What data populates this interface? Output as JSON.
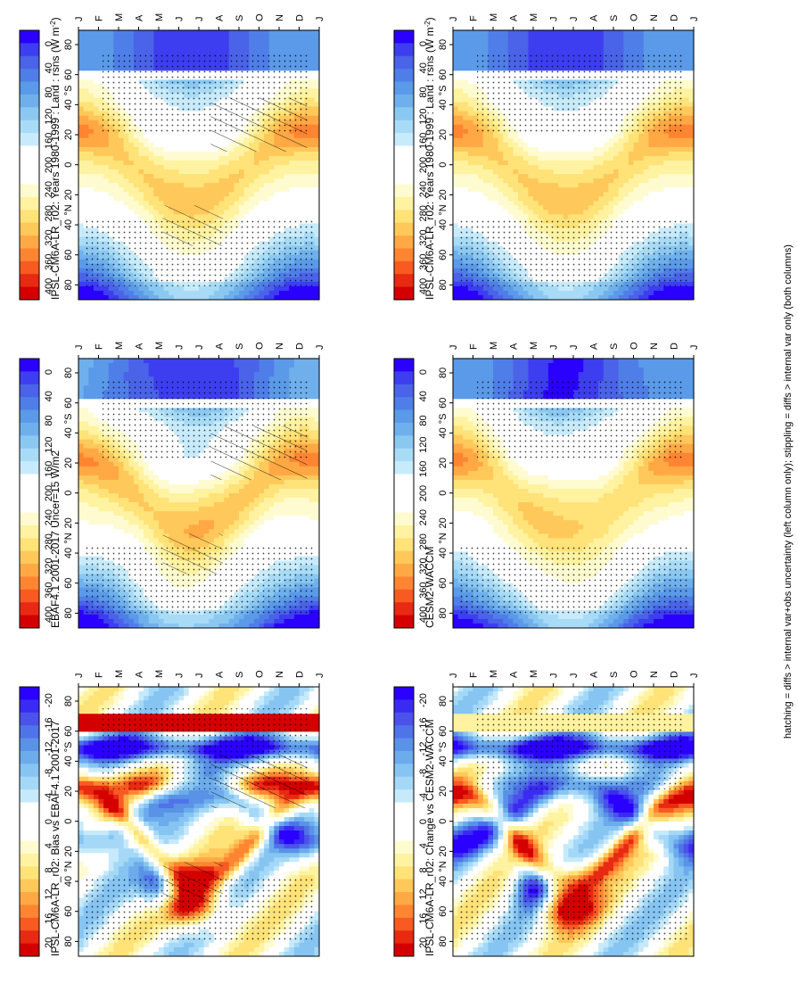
{
  "figure": {
    "footnote": "hatching = diffs > internal var+obs uncertainty (left column only); stippling = diffs > internal var only (both columns)"
  },
  "palettes": {
    "absolute": [
      "#2a00ff",
      "#3d3ef0",
      "#4a63e8",
      "#4f7ee8",
      "#5a9ae8",
      "#6fb0ec",
      "#8ac8f2",
      "#a8dbf6",
      "#c8ebfb",
      "#ffffff",
      "#ffffff",
      "#ffffff",
      "#fffbd0",
      "#fff2a0",
      "#ffe278",
      "#ffc85a",
      "#ffa844",
      "#ff8532",
      "#f85a22",
      "#e82a12",
      "#d40000"
    ],
    "anomaly": [
      "#2a00ff",
      "#3a2bf2",
      "#4a52ea",
      "#4f73e8",
      "#5a92e8",
      "#6cabec",
      "#86c4f2",
      "#a4d8f6",
      "#c6eafb",
      "#ffffff",
      "#ffffff",
      "#ffffff",
      "#fffbd0",
      "#fff2a0",
      "#ffe278",
      "#ffc85a",
      "#ffa844",
      "#ff8532",
      "#f85a22",
      "#e82a12",
      "#d40000"
    ]
  },
  "chart_data": [
    {
      "id": "p1",
      "type": "heatmap",
      "title": "IPSL-CM6A-LR_r02: Years 1980-1999 : Land : rsns (W m",
      "title_sup": "-2",
      "title_end": ")",
      "xlabel_months": [
        "J",
        "F",
        "M",
        "A",
        "M",
        "J",
        "J",
        "A",
        "S",
        "O",
        "N",
        "D",
        "J"
      ],
      "y_ticks": [
        "80",
        "60",
        "40",
        "20",
        "0",
        "20",
        "40",
        "60",
        "80"
      ],
      "y_hemi_labels": [
        "°N",
        "°S"
      ],
      "colorbar_ticks": [
        "400",
        "360",
        "320",
        "280",
        "240",
        "200",
        "160",
        "120",
        "80",
        "40",
        "0"
      ],
      "palette": "absolute",
      "vrange": [
        0,
        420
      ],
      "kind": "clim",
      "hatching": true,
      "stippling": true
    },
    {
      "id": "p2",
      "type": "heatmap",
      "title": "IPSL-CM6A-LR_r02: Years 1980-1999 : Land : rsns (W m",
      "title_sup": "-2",
      "title_end": ")",
      "xlabel_months": [
        "J",
        "F",
        "M",
        "A",
        "M",
        "J",
        "J",
        "A",
        "S",
        "O",
        "N",
        "D",
        "J"
      ],
      "y_ticks": [
        "80",
        "60",
        "40",
        "20",
        "0",
        "20",
        "40",
        "60",
        "80"
      ],
      "y_hemi_labels": [
        "°N",
        "°S"
      ],
      "colorbar_ticks": [
        "400",
        "360",
        "320",
        "280",
        "240",
        "200",
        "160",
        "120",
        "80",
        "40",
        "0"
      ],
      "palette": "absolute",
      "vrange": [
        0,
        420
      ],
      "kind": "clim",
      "hatching": false,
      "stippling": true
    },
    {
      "id": "p3",
      "type": "heatmap",
      "title": "EBAF4.1 2001-2017 Uncer=15 W/m2",
      "xlabel_months": [
        "J",
        "F",
        "M",
        "A",
        "M",
        "J",
        "J",
        "A",
        "S",
        "O",
        "N",
        "D",
        "J"
      ],
      "y_ticks": [
        "80",
        "60",
        "40",
        "20",
        "0",
        "20",
        "40",
        "60",
        "80"
      ],
      "y_hemi_labels": [
        "°N",
        "°S"
      ],
      "colorbar_ticks": [
        "400",
        "360",
        "320",
        "280",
        "240",
        "200",
        "160",
        "120",
        "80",
        "40",
        "0"
      ],
      "palette": "absolute",
      "vrange": [
        0,
        420
      ],
      "kind": "clim_obs",
      "hatching": true,
      "stippling": true
    },
    {
      "id": "p4",
      "type": "heatmap",
      "title": "CESM2-WACCM",
      "xlabel_months": [
        "J",
        "F",
        "M",
        "A",
        "M",
        "J",
        "J",
        "A",
        "S",
        "O",
        "N",
        "D",
        "J"
      ],
      "y_ticks": [
        "80",
        "60",
        "40",
        "20",
        "0",
        "20",
        "40",
        "60",
        "80"
      ],
      "y_hemi_labels": [
        "°N",
        "°S"
      ],
      "colorbar_ticks": [
        "400",
        "360",
        "320",
        "280",
        "240",
        "200",
        "160",
        "120",
        "80",
        "40",
        "0"
      ],
      "palette": "absolute",
      "vrange": [
        0,
        420
      ],
      "kind": "clim_cesm",
      "hatching": false,
      "stippling": true
    },
    {
      "id": "p5",
      "type": "heatmap",
      "title": "IPSL-CM6A-LR_r02: Bias vs EBAF4.1 2001-2017",
      "xlabel_months": [
        "J",
        "F",
        "M",
        "A",
        "M",
        "J",
        "J",
        "A",
        "S",
        "O",
        "N",
        "D",
        "J"
      ],
      "y_ticks": [
        "80",
        "60",
        "40",
        "20",
        "0",
        "20",
        "40",
        "60",
        "80"
      ],
      "y_hemi_labels": [
        "°N",
        "°S"
      ],
      "colorbar_ticks": [
        "20",
        "16",
        "12",
        "8",
        "4",
        "0",
        "-4",
        "-8",
        "-12",
        "-16",
        "-20"
      ],
      "palette": "anomaly",
      "vrange": [
        -21,
        21
      ],
      "kind": "bias",
      "hatching": true,
      "stippling": true
    },
    {
      "id": "p6",
      "type": "heatmap",
      "title": "IPSL-CM6A-LR_r02: Change vs CESM2-WACCM",
      "xlabel_months": [
        "J",
        "F",
        "M",
        "A",
        "M",
        "J",
        "J",
        "A",
        "S",
        "O",
        "N",
        "D",
        "J"
      ],
      "y_ticks": [
        "80",
        "60",
        "40",
        "20",
        "0",
        "20",
        "40",
        "60",
        "80"
      ],
      "y_hemi_labels": [
        "°N",
        "°S"
      ],
      "colorbar_ticks": [
        "20",
        "16",
        "12",
        "8",
        "4",
        "0",
        "-4",
        "-8",
        "-12",
        "-16",
        "-20"
      ],
      "palette": "anomaly",
      "vrange": [
        -21,
        21
      ],
      "kind": "change",
      "hatching": false,
      "stippling": true
    }
  ]
}
